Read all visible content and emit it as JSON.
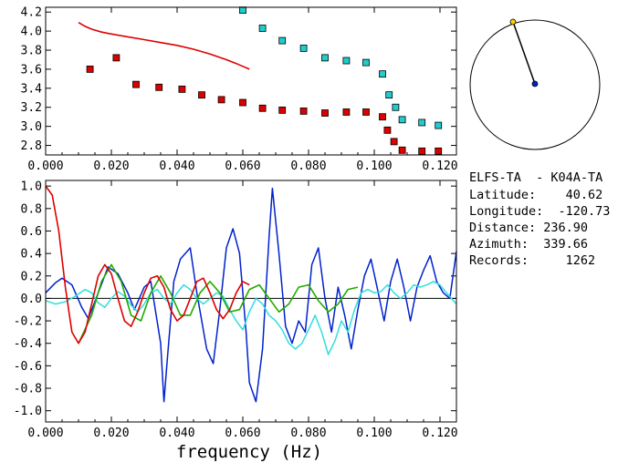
{
  "chart_data": [
    {
      "type": "scatter",
      "xlim": [
        0.0,
        0.125
      ],
      "ylim": [
        2.7,
        4.25
      ],
      "x_ticks": [
        "0.000",
        "0.020",
        "0.040",
        "0.060",
        "0.080",
        "0.100",
        "0.120"
      ],
      "y_ticks": [
        "2.8",
        "3.0",
        "3.2",
        "3.4",
        "3.6",
        "3.8",
        "4.0",
        "4.2"
      ],
      "series": [
        {
          "kind": "line",
          "color": "#dd0000",
          "x": [
            0.01,
            0.012,
            0.014,
            0.017,
            0.02,
            0.025,
            0.03,
            0.035,
            0.04,
            0.045,
            0.05,
            0.055,
            0.058,
            0.06,
            0.062
          ],
          "y": [
            4.09,
            4.05,
            4.02,
            3.99,
            3.97,
            3.94,
            3.91,
            3.88,
            3.85,
            3.81,
            3.76,
            3.7,
            3.66,
            3.63,
            3.6
          ]
        },
        {
          "kind": "markers",
          "color": "#dd0000",
          "x": [
            0.0135,
            0.0215,
            0.0275,
            0.0345,
            0.0415,
            0.0475,
            0.0535,
            0.06,
            0.066,
            0.072,
            0.0785,
            0.085,
            0.0915,
            0.0975,
            0.1025,
            0.104,
            0.106,
            0.1085,
            0.1145,
            0.1195
          ],
          "y": [
            3.6,
            3.72,
            3.44,
            3.41,
            3.39,
            3.33,
            3.28,
            3.25,
            3.19,
            3.17,
            3.16,
            3.14,
            3.15,
            3.15,
            3.1,
            2.96,
            2.84,
            2.75,
            2.74,
            2.74
          ]
        },
        {
          "kind": "markers",
          "color": "#22cccc",
          "x": [
            0.06,
            0.066,
            0.072,
            0.0785,
            0.085,
            0.0915,
            0.0975,
            0.1025,
            0.1045,
            0.1065,
            0.1085,
            0.1145,
            0.1195
          ],
          "y": [
            4.22,
            4.03,
            3.9,
            3.82,
            3.72,
            3.69,
            3.67,
            3.55,
            3.33,
            3.2,
            3.07,
            3.04,
            3.01
          ]
        }
      ]
    },
    {
      "type": "line",
      "xlim": [
        0.0,
        0.125
      ],
      "ylim": [
        -1.1,
        1.05
      ],
      "xlabel": "frequency (Hz)",
      "x_ticks": [
        "0.000",
        "0.020",
        "0.040",
        "0.060",
        "0.080",
        "0.100",
        "0.120"
      ],
      "y_ticks": [
        "1.0",
        "0.8",
        "0.6",
        "0.4",
        "0.2",
        "0.0",
        "-0.2",
        "-0.4",
        "-0.6",
        "-0.8",
        "-1.0"
      ],
      "zero_line": true,
      "series": [
        {
          "color": "#0022cc",
          "x": [
            0.0,
            0.003,
            0.005,
            0.008,
            0.011,
            0.013,
            0.016,
            0.019,
            0.022,
            0.025,
            0.027,
            0.03,
            0.032,
            0.035,
            0.036,
            0.037,
            0.039,
            0.041,
            0.044,
            0.046,
            0.049,
            0.051,
            0.053,
            0.055,
            0.057,
            0.059,
            0.061,
            0.062,
            0.064,
            0.066,
            0.068,
            0.069,
            0.071,
            0.073,
            0.075,
            0.077,
            0.079,
            0.081,
            0.083,
            0.085,
            0.087,
            0.089,
            0.091,
            0.093,
            0.095,
            0.097,
            0.099,
            0.101,
            0.103,
            0.105,
            0.107,
            0.109,
            0.111,
            0.113,
            0.115,
            0.117,
            0.119,
            0.121,
            0.123,
            0.125
          ],
          "y": [
            0.05,
            0.14,
            0.18,
            0.12,
            -0.08,
            -0.18,
            0.05,
            0.28,
            0.22,
            0.05,
            -0.1,
            0.1,
            0.15,
            -0.4,
            -0.92,
            -0.55,
            0.15,
            0.35,
            0.45,
            0.05,
            -0.45,
            -0.58,
            -0.1,
            0.45,
            0.62,
            0.4,
            -0.3,
            -0.75,
            -0.92,
            -0.45,
            0.55,
            0.98,
            0.4,
            -0.25,
            -0.4,
            -0.2,
            -0.3,
            0.3,
            0.45,
            0.0,
            -0.3,
            0.1,
            -0.15,
            -0.45,
            -0.1,
            0.2,
            0.35,
            0.08,
            -0.2,
            0.15,
            0.35,
            0.1,
            -0.2,
            0.1,
            0.25,
            0.38,
            0.15,
            0.05,
            0.0,
            0.42
          ]
        },
        {
          "color": "#33dddd",
          "x": [
            0.0,
            0.003,
            0.006,
            0.009,
            0.012,
            0.014,
            0.016,
            0.018,
            0.02,
            0.022,
            0.024,
            0.026,
            0.028,
            0.03,
            0.032,
            0.034,
            0.036,
            0.038,
            0.04,
            0.042,
            0.044,
            0.046,
            0.048,
            0.05,
            0.052,
            0.054,
            0.056,
            0.058,
            0.06,
            0.062,
            0.064,
            0.066,
            0.068,
            0.07,
            0.072,
            0.074,
            0.076,
            0.078,
            0.08,
            0.082,
            0.084,
            0.086,
            0.088,
            0.09,
            0.092,
            0.094,
            0.096,
            0.098,
            0.1,
            0.102,
            0.104,
            0.106,
            0.108,
            0.11,
            0.112,
            0.114,
            0.116,
            0.118,
            0.12,
            0.122,
            0.125
          ],
          "y": [
            -0.02,
            -0.05,
            -0.03,
            0.02,
            0.08,
            0.05,
            -0.04,
            -0.08,
            0.0,
            0.06,
            0.02,
            -0.06,
            -0.12,
            -0.05,
            0.05,
            0.08,
            0.0,
            -0.05,
            0.05,
            0.12,
            0.08,
            0.0,
            -0.05,
            0.0,
            0.05,
            0.02,
            -0.1,
            -0.2,
            -0.28,
            -0.12,
            0.0,
            -0.05,
            -0.15,
            -0.2,
            -0.28,
            -0.4,
            -0.45,
            -0.4,
            -0.28,
            -0.15,
            -0.3,
            -0.5,
            -0.38,
            -0.2,
            -0.3,
            -0.1,
            0.05,
            0.08,
            0.05,
            0.06,
            0.12,
            0.05,
            0.0,
            0.05,
            0.12,
            0.1,
            0.12,
            0.15,
            0.12,
            0.05,
            -0.05
          ]
        },
        {
          "color": "#22aa00",
          "x": [
            0.01,
            0.014,
            0.017,
            0.02,
            0.023,
            0.026,
            0.029,
            0.032,
            0.035,
            0.038,
            0.041,
            0.044,
            0.047,
            0.05,
            0.053,
            0.056,
            0.059,
            0.062,
            0.065,
            0.068,
            0.071,
            0.074,
            0.077,
            0.08,
            0.083,
            0.086,
            0.089,
            0.092,
            0.095
          ],
          "y": [
            -0.4,
            -0.15,
            0.15,
            0.3,
            0.15,
            -0.15,
            -0.2,
            0.05,
            0.2,
            0.05,
            -0.15,
            -0.15,
            0.05,
            0.15,
            0.05,
            -0.12,
            -0.1,
            0.08,
            0.12,
            0.0,
            -0.12,
            -0.05,
            0.1,
            0.12,
            -0.02,
            -0.12,
            -0.05,
            0.08,
            0.1
          ]
        },
        {
          "color": "#dd0000",
          "x": [
            0.0,
            0.002,
            0.004,
            0.006,
            0.008,
            0.01,
            0.012,
            0.014,
            0.016,
            0.018,
            0.02,
            0.022,
            0.024,
            0.026,
            0.028,
            0.03,
            0.032,
            0.034,
            0.036,
            0.038,
            0.04,
            0.042,
            0.044,
            0.046,
            0.048,
            0.05,
            0.052,
            0.054,
            0.056,
            0.058,
            0.06,
            0.062
          ],
          "y": [
            1.0,
            0.92,
            0.6,
            0.1,
            -0.3,
            -0.4,
            -0.3,
            -0.05,
            0.2,
            0.3,
            0.22,
            0.0,
            -0.2,
            -0.25,
            -0.12,
            0.05,
            0.18,
            0.2,
            0.1,
            -0.1,
            -0.2,
            -0.15,
            0.0,
            0.15,
            0.18,
            0.05,
            -0.1,
            -0.18,
            -0.1,
            0.05,
            0.15,
            0.12
          ]
        }
      ]
    }
  ],
  "map": {
    "pin_color": "#ffcc00",
    "center_color": "#0022cc"
  },
  "info": {
    "lines": [
      "ELFS-TA  - K04A-TA",
      "Latitude:    40.62",
      "Longitude:  -120.73",
      "Distance: 236.90",
      "Azimuth:  339.66",
      "Records:     1262"
    ]
  }
}
